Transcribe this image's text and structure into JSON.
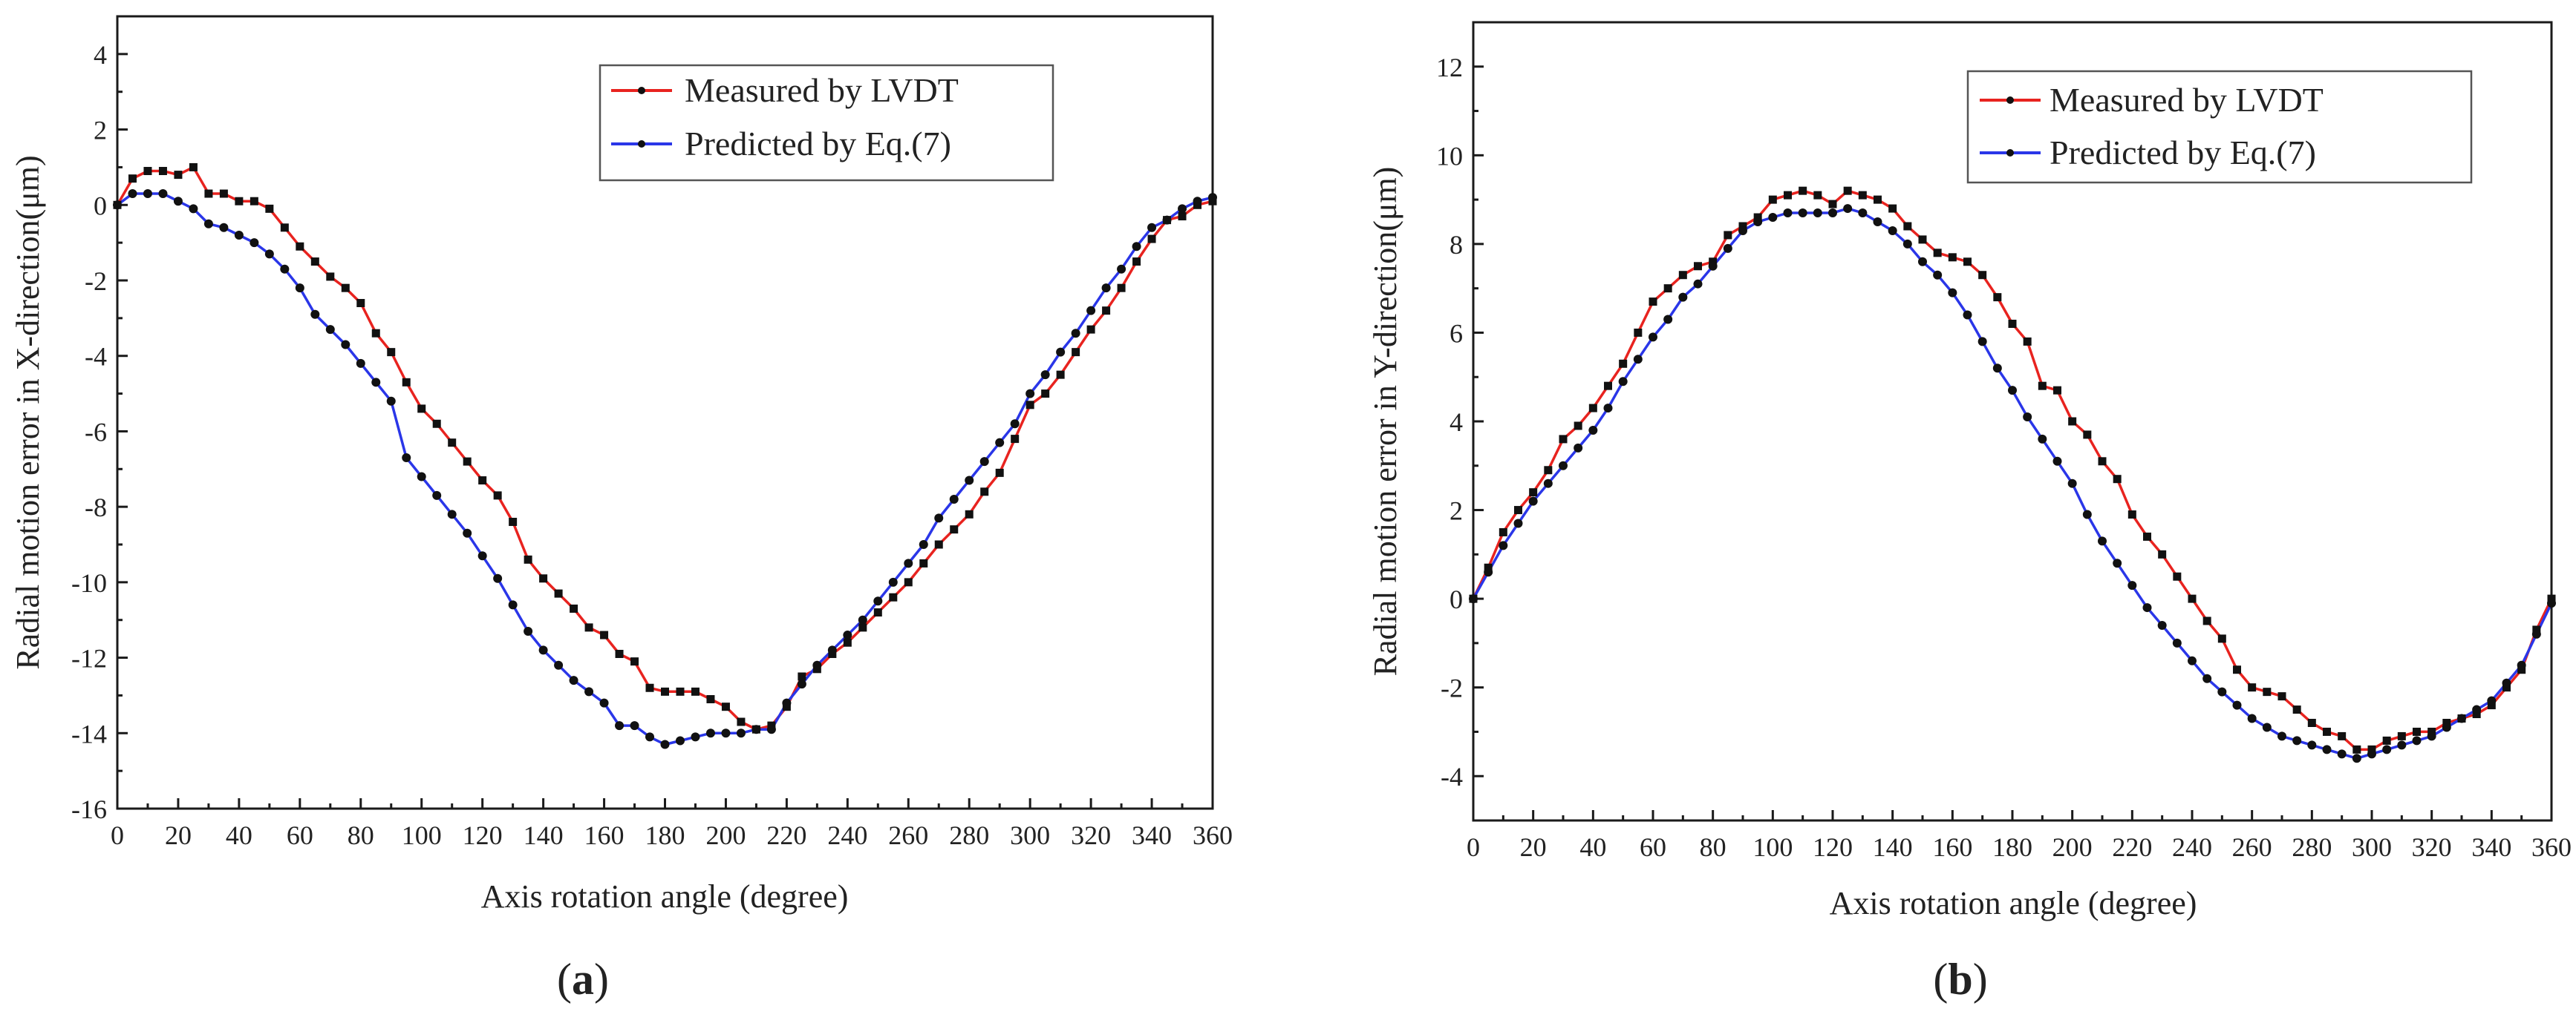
{
  "colors": {
    "measured": "#e8231f",
    "predicted": "#2a36e8",
    "marker": "#111111",
    "axis": "#1a1a1a"
  },
  "chart_data": [
    {
      "type": "line",
      "panel_label": "(a)",
      "panel_letter": "a",
      "xlabel": "Axis rotation angle (degree)",
      "ylabel": "Radial motion error in X-direction(μm)",
      "xlim": [
        0,
        360
      ],
      "ylim": [
        -16,
        5
      ],
      "xticks": [
        0,
        20,
        40,
        60,
        80,
        100,
        120,
        140,
        160,
        180,
        200,
        220,
        240,
        260,
        280,
        300,
        320,
        340,
        360
      ],
      "yticks": [
        -16,
        -14,
        -12,
        -10,
        -8,
        -6,
        -4,
        -2,
        0,
        2,
        4
      ],
      "legend_position": "top-right",
      "grid": false,
      "series": [
        {
          "name": "Measured by LVDT",
          "color": "#e8231f",
          "x": [
            0,
            5,
            10,
            15,
            20,
            25,
            30,
            35,
            40,
            45,
            50,
            55,
            60,
            65,
            70,
            75,
            80,
            85,
            90,
            95,
            100,
            105,
            110,
            115,
            120,
            125,
            130,
            135,
            140,
            145,
            150,
            155,
            160,
            165,
            170,
            175,
            180,
            185,
            190,
            195,
            200,
            205,
            210,
            215,
            220,
            225,
            230,
            235,
            240,
            245,
            250,
            255,
            260,
            265,
            270,
            275,
            280,
            285,
            290,
            295,
            300,
            305,
            310,
            315,
            320,
            325,
            330,
            335,
            340,
            345,
            350,
            355,
            360
          ],
          "values": [
            0,
            0.7,
            0.9,
            0.9,
            0.8,
            1.0,
            0.3,
            0.3,
            0.1,
            0.1,
            -0.1,
            -0.6,
            -1.1,
            -1.5,
            -1.9,
            -2.2,
            -2.6,
            -3.4,
            -3.9,
            -4.7,
            -5.4,
            -5.8,
            -6.3,
            -6.8,
            -7.3,
            -7.7,
            -8.4,
            -9.4,
            -9.9,
            -10.3,
            -10.7,
            -11.2,
            -11.4,
            -11.9,
            -12.1,
            -12.8,
            -12.9,
            -12.9,
            -12.9,
            -13.1,
            -13.3,
            -13.7,
            -13.9,
            -13.8,
            -13.3,
            -12.5,
            -12.3,
            -11.9,
            -11.6,
            -11.2,
            -10.8,
            -10.4,
            -10.0,
            -9.5,
            -9.0,
            -8.6,
            -8.2,
            -7.6,
            -7.1,
            -6.2,
            -5.3,
            -5.0,
            -4.5,
            -3.9,
            -3.3,
            -2.8,
            -2.2,
            -1.5,
            -0.9,
            -0.4,
            -0.3,
            0.0,
            0.1
          ]
        },
        {
          "name": "Predicted by Eq.(7)",
          "color": "#2a36e8",
          "x": [
            0,
            5,
            10,
            15,
            20,
            25,
            30,
            35,
            40,
            45,
            50,
            55,
            60,
            65,
            70,
            75,
            80,
            85,
            90,
            95,
            100,
            105,
            110,
            115,
            120,
            125,
            130,
            135,
            140,
            145,
            150,
            155,
            160,
            165,
            170,
            175,
            180,
            185,
            190,
            195,
            200,
            205,
            210,
            215,
            220,
            225,
            230,
            235,
            240,
            245,
            250,
            255,
            260,
            265,
            270,
            275,
            280,
            285,
            290,
            295,
            300,
            305,
            310,
            315,
            320,
            325,
            330,
            335,
            340,
            345,
            350,
            355,
            360
          ],
          "values": [
            0,
            0.3,
            0.3,
            0.3,
            0.1,
            -0.1,
            -0.5,
            -0.6,
            -0.8,
            -1.0,
            -1.3,
            -1.7,
            -2.2,
            -2.9,
            -3.3,
            -3.7,
            -4.2,
            -4.7,
            -5.2,
            -6.7,
            -7.2,
            -7.7,
            -8.2,
            -8.7,
            -9.3,
            -9.9,
            -10.6,
            -11.3,
            -11.8,
            -12.2,
            -12.6,
            -12.9,
            -13.2,
            -13.8,
            -13.8,
            -14.1,
            -14.3,
            -14.2,
            -14.1,
            -14.0,
            -14.0,
            -14.0,
            -13.9,
            -13.9,
            -13.2,
            -12.7,
            -12.2,
            -11.8,
            -11.4,
            -11.0,
            -10.5,
            -10.0,
            -9.5,
            -9.0,
            -8.3,
            -7.8,
            -7.3,
            -6.8,
            -6.3,
            -5.8,
            -5.0,
            -4.5,
            -3.9,
            -3.4,
            -2.8,
            -2.2,
            -1.7,
            -1.1,
            -0.6,
            -0.4,
            -0.1,
            0.1,
            0.2
          ]
        }
      ]
    },
    {
      "type": "line",
      "panel_label": "(b)",
      "panel_letter": "b",
      "xlabel": "Axis rotation angle (degree)",
      "ylabel": "Radial motion error in Y-direction(μm)",
      "xlim": [
        0,
        360
      ],
      "ylim": [
        -5,
        13
      ],
      "xticks": [
        0,
        20,
        40,
        60,
        80,
        100,
        120,
        140,
        160,
        180,
        200,
        220,
        240,
        260,
        280,
        300,
        320,
        340,
        360
      ],
      "yticks": [
        -4,
        -2,
        0,
        2,
        4,
        6,
        8,
        10,
        12
      ],
      "legend_position": "top-right",
      "grid": false,
      "series": [
        {
          "name": "Measured by LVDT",
          "color": "#e8231f",
          "x": [
            0,
            5,
            10,
            15,
            20,
            25,
            30,
            35,
            40,
            45,
            50,
            55,
            60,
            65,
            70,
            75,
            80,
            85,
            90,
            95,
            100,
            105,
            110,
            115,
            120,
            125,
            130,
            135,
            140,
            145,
            150,
            155,
            160,
            165,
            170,
            175,
            180,
            185,
            190,
            195,
            200,
            205,
            210,
            215,
            220,
            225,
            230,
            235,
            240,
            245,
            250,
            255,
            260,
            265,
            270,
            275,
            280,
            285,
            290,
            295,
            300,
            305,
            310,
            315,
            320,
            325,
            330,
            335,
            340,
            345,
            350,
            355,
            360
          ],
          "values": [
            0,
            0.7,
            1.5,
            2.0,
            2.4,
            2.9,
            3.6,
            3.9,
            4.3,
            4.8,
            5.3,
            6.0,
            6.7,
            7.0,
            7.3,
            7.5,
            7.6,
            8.2,
            8.4,
            8.6,
            9.0,
            9.1,
            9.2,
            9.1,
            8.9,
            9.2,
            9.1,
            9.0,
            8.8,
            8.4,
            8.1,
            7.8,
            7.7,
            7.6,
            7.3,
            6.8,
            6.2,
            5.8,
            4.8,
            4.7,
            4.0,
            3.7,
            3.1,
            2.7,
            1.9,
            1.4,
            1.0,
            0.5,
            0.0,
            -0.5,
            -0.9,
            -1.6,
            -2.0,
            -2.1,
            -2.2,
            -2.5,
            -2.8,
            -3.0,
            -3.1,
            -3.4,
            -3.4,
            -3.2,
            -3.1,
            -3.0,
            -3.0,
            -2.8,
            -2.7,
            -2.6,
            -2.4,
            -2.0,
            -1.6,
            -0.7,
            0.0
          ]
        },
        {
          "name": "Predicted by Eq.(7)",
          "color": "#2a36e8",
          "x": [
            0,
            5,
            10,
            15,
            20,
            25,
            30,
            35,
            40,
            45,
            50,
            55,
            60,
            65,
            70,
            75,
            80,
            85,
            90,
            95,
            100,
            105,
            110,
            115,
            120,
            125,
            130,
            135,
            140,
            145,
            150,
            155,
            160,
            165,
            170,
            175,
            180,
            185,
            190,
            195,
            200,
            205,
            210,
            215,
            220,
            225,
            230,
            235,
            240,
            245,
            250,
            255,
            260,
            265,
            270,
            275,
            280,
            285,
            290,
            295,
            300,
            305,
            310,
            315,
            320,
            325,
            330,
            335,
            340,
            345,
            350,
            355,
            360
          ],
          "values": [
            0,
            0.6,
            1.2,
            1.7,
            2.2,
            2.6,
            3.0,
            3.4,
            3.8,
            4.3,
            4.9,
            5.4,
            5.9,
            6.3,
            6.8,
            7.1,
            7.5,
            7.9,
            8.3,
            8.5,
            8.6,
            8.7,
            8.7,
            8.7,
            8.7,
            8.8,
            8.7,
            8.5,
            8.3,
            8.0,
            7.6,
            7.3,
            6.9,
            6.4,
            5.8,
            5.2,
            4.7,
            4.1,
            3.6,
            3.1,
            2.6,
            1.9,
            1.3,
            0.8,
            0.3,
            -0.2,
            -0.6,
            -1.0,
            -1.4,
            -1.8,
            -2.1,
            -2.4,
            -2.7,
            -2.9,
            -3.1,
            -3.2,
            -3.3,
            -3.4,
            -3.5,
            -3.6,
            -3.5,
            -3.4,
            -3.3,
            -3.2,
            -3.1,
            -2.9,
            -2.7,
            -2.5,
            -2.3,
            -1.9,
            -1.5,
            -0.8,
            -0.1
          ]
        }
      ]
    }
  ]
}
